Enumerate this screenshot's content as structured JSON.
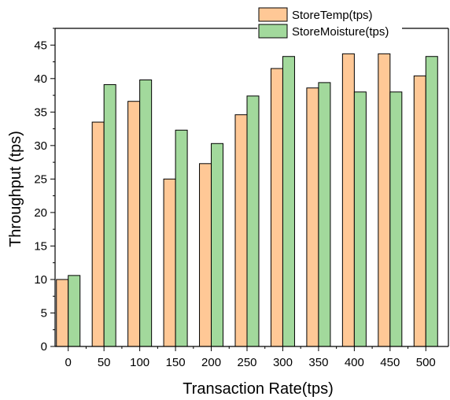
{
  "chart_data": {
    "type": "bar",
    "title": "",
    "xlabel": "Transaction Rate(tps)",
    "ylabel": "Throughput (tps)",
    "categories": [
      "0",
      "50",
      "100",
      "150",
      "200",
      "250",
      "300",
      "350",
      "400",
      "450",
      "500"
    ],
    "ylim": [
      0,
      47.5
    ],
    "yticks": [
      "0",
      "5",
      "10",
      "15",
      "20",
      "25",
      "30",
      "35",
      "40",
      "45"
    ],
    "grid": false,
    "legend_position": "top-right",
    "series": [
      {
        "name": "StoreTemp(tps)",
        "color": "#FFC896",
        "values": [
          10.0,
          33.5,
          36.6,
          25.0,
          27.3,
          34.6,
          41.5,
          38.6,
          43.7,
          43.7,
          40.4
        ]
      },
      {
        "name": "StoreMoisture(tps)",
        "color": "#A2D99C",
        "values": [
          10.6,
          39.1,
          39.8,
          32.3,
          30.3,
          37.4,
          43.3,
          39.4,
          38.0,
          38.0,
          43.3
        ]
      }
    ]
  }
}
